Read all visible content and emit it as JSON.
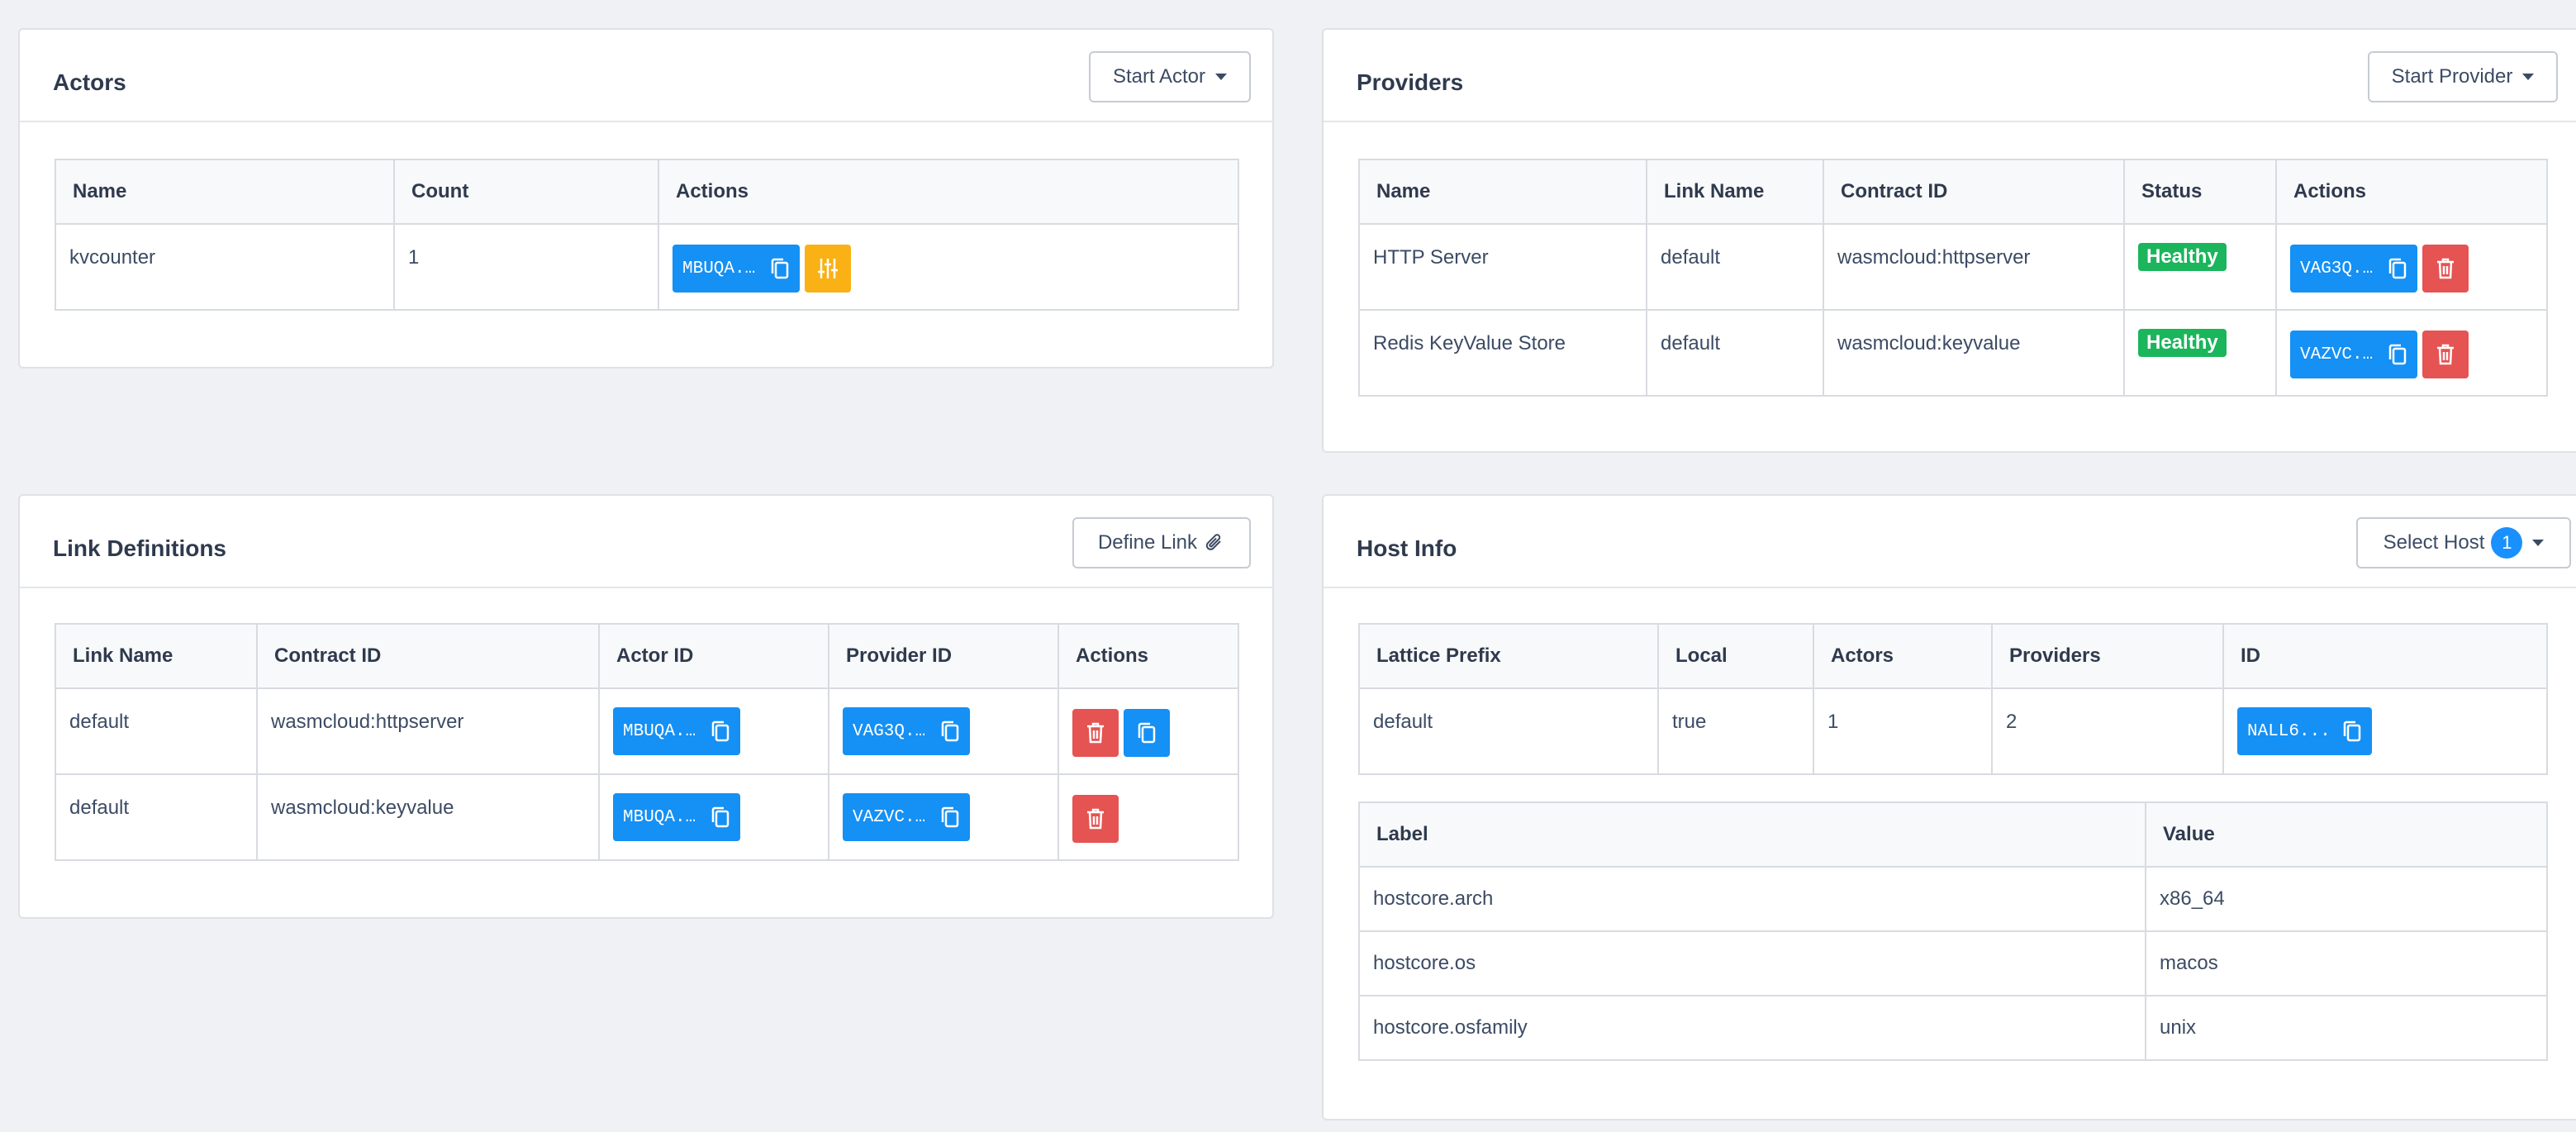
{
  "actors": {
    "title": "Actors",
    "start_button": "Start Actor",
    "columns": [
      "Name",
      "Count",
      "Actions"
    ],
    "rows": [
      {
        "name": "kvcounter",
        "count": "1",
        "actor_id": "MBUQA..."
      }
    ]
  },
  "providers": {
    "title": "Providers",
    "start_button": "Start Provider",
    "columns": [
      "Name",
      "Link Name",
      "Contract ID",
      "Status",
      "Actions"
    ],
    "rows": [
      {
        "name": "HTTP Server",
        "link_name": "default",
        "contract_id": "wasmcloud:httpserver",
        "status": "Healthy",
        "provider_id": "VAG3Q..."
      },
      {
        "name": "Redis KeyValue Store",
        "link_name": "default",
        "contract_id": "wasmcloud:keyvalue",
        "status": "Healthy",
        "provider_id": "VAZVC..."
      }
    ]
  },
  "links": {
    "title": "Link Definitions",
    "define_button": "Define Link",
    "columns": [
      "Link Name",
      "Contract ID",
      "Actor ID",
      "Provider ID",
      "Actions"
    ],
    "rows": [
      {
        "link_name": "default",
        "contract_id": "wasmcloud:httpserver",
        "actor_id": "MBUQA...",
        "provider_id": "VAG3Q..."
      },
      {
        "link_name": "default",
        "contract_id": "wasmcloud:keyvalue",
        "actor_id": "MBUQA...",
        "provider_id": "VAZVC..."
      }
    ]
  },
  "host_info": {
    "title": "Host Info",
    "select_button": "Select Host",
    "host_count": "1",
    "columns": [
      "Lattice Prefix",
      "Local",
      "Actors",
      "Providers",
      "ID"
    ],
    "row": {
      "lattice_prefix": "default",
      "local": "true",
      "actors": "1",
      "providers": "2",
      "id": "NALL6..."
    },
    "label_columns": [
      "Label",
      "Value"
    ],
    "labels": [
      {
        "label": "hostcore.arch",
        "value": "x86_64"
      },
      {
        "label": "hostcore.os",
        "value": "macos"
      },
      {
        "label": "hostcore.osfamily",
        "value": "unix"
      }
    ]
  },
  "colors": {
    "primary": "#1590f4",
    "danger": "#e55353",
    "warning": "#f9b115",
    "success": "#1bb55c"
  }
}
